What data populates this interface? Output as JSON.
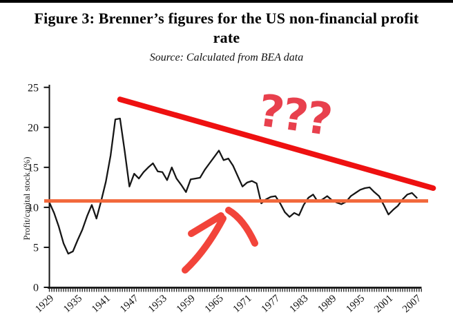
{
  "header": {
    "title_line1": "Figure 3: Brenner’s figures for the US non-financial profit",
    "title_line2": "rate",
    "source": "Source: Calculated from BEA data"
  },
  "chart_data": {
    "type": "line",
    "title": "Figure 3: Brenner’s figures for the US non-financial profit rate",
    "source_note": "Source: Calculated from BEA data",
    "ylabel": "Profit/capital stock (%)",
    "xlabel": "",
    "ylim": [
      0,
      25
    ],
    "y_ticks": [
      0,
      5,
      10,
      15,
      20,
      25
    ],
    "x_range": [
      1929,
      2008
    ],
    "x_tick_labels": [
      "1929",
      "1935",
      "1941",
      "1947",
      "1953",
      "1959",
      "1965",
      "1971",
      "1977",
      "1983",
      "1989",
      "1995",
      "2001",
      "2007"
    ],
    "grid": false,
    "legend": "none",
    "series": [
      {
        "name": "US non-financial profit rate",
        "color": "#161616",
        "years": [
          1929,
          1930,
          1931,
          1932,
          1933,
          1934,
          1935,
          1936,
          1937,
          1938,
          1939,
          1940,
          1941,
          1942,
          1943,
          1944,
          1945,
          1946,
          1947,
          1948,
          1949,
          1950,
          1951,
          1952,
          1953,
          1954,
          1955,
          1956,
          1957,
          1958,
          1959,
          1960,
          1961,
          1962,
          1963,
          1964,
          1965,
          1966,
          1967,
          1968,
          1969,
          1970,
          1971,
          1972,
          1973,
          1974,
          1975,
          1976,
          1977,
          1978,
          1979,
          1980,
          1981,
          1982,
          1983,
          1984,
          1985,
          1986,
          1987,
          1988,
          1989,
          1990,
          1991,
          1992,
          1993,
          1994,
          1995,
          1996,
          1997,
          1998,
          1999,
          2000,
          2001,
          2002,
          2003,
          2004,
          2005,
          2006,
          2007
        ],
        "values": [
          10.6,
          9.3,
          7.6,
          5.5,
          4.2,
          4.5,
          5.9,
          7.2,
          8.9,
          10.3,
          8.6,
          10.8,
          13.2,
          16.5,
          21.0,
          21.1,
          17.0,
          12.6,
          14.2,
          13.6,
          14.4,
          15.0,
          15.5,
          14.5,
          14.4,
          13.4,
          15.0,
          13.6,
          12.8,
          11.9,
          13.5,
          13.6,
          13.7,
          14.7,
          15.5,
          16.3,
          17.1,
          15.9,
          16.1,
          15.2,
          13.9,
          12.6,
          13.1,
          13.3,
          13.0,
          10.5,
          11.0,
          11.3,
          11.4,
          10.5,
          9.4,
          8.8,
          9.3,
          9.0,
          10.3,
          11.2,
          11.6,
          10.7,
          11.0,
          11.4,
          10.9,
          10.6,
          10.4,
          10.7,
          11.4,
          11.8,
          12.2,
          12.4,
          12.5,
          11.9,
          11.4,
          10.3,
          9.1,
          9.7,
          10.2,
          11.0,
          11.6,
          11.8,
          11.2
        ]
      }
    ],
    "annotations": {
      "horizontal_line": {
        "value": 10.8,
        "color": "#f2683b"
      },
      "trend_line": {
        "color": "#ee1111",
        "from": {
          "year": 1944,
          "value": 23.5
        },
        "to": {
          "year": 2010.5,
          "value": 12.4
        }
      },
      "question_marks": {
        "text": "???",
        "color": "#e8404d"
      },
      "arrow": {
        "color": "#f2443a",
        "direction": "up-right"
      }
    }
  }
}
